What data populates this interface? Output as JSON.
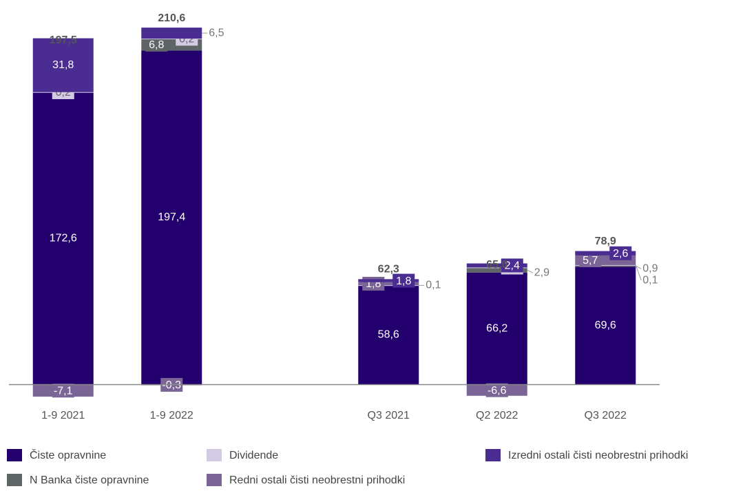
{
  "chart_data": {
    "type": "stacked_bar",
    "categories": [
      "1-9 2021",
      "1-9 2022",
      null,
      "Q3 2021",
      "Q2 2022",
      "Q3 2022"
    ],
    "series": [
      {
        "name": "Čiste opravnine",
        "color": "#24006e",
        "values": [
          172.6,
          197.4,
          null,
          58.6,
          66.2,
          69.6
        ],
        "value_labels": [
          "172,6",
          "197,4",
          null,
          "58,6",
          "66,2",
          "69,6"
        ]
      },
      {
        "name": "N Banka čiste opravnine",
        "color": "#5f6566",
        "values": [
          null,
          6.8,
          null,
          null,
          2.9,
          0.9
        ],
        "value_labels": [
          null,
          "6,8",
          null,
          null,
          "2,9",
          "0,9"
        ]
      },
      {
        "name": "Dividende",
        "color": "#d3cbe3",
        "values": [
          0.2,
          0.2,
          null,
          0.1,
          0.1,
          0.1
        ],
        "value_labels": [
          "0,2",
          "0,2",
          null,
          "0,1",
          "0,1",
          "0,1"
        ]
      },
      {
        "name": "Redni ostali čisti neobrestni prihodki",
        "color": "#7b6596",
        "values": [
          -7.1,
          -0.3,
          null,
          1.8,
          -6.6,
          5.7
        ],
        "value_labels": [
          "-7,1",
          "-0,3",
          null,
          "1,8",
          "-6,6",
          "5,7"
        ]
      },
      {
        "name": "Izredni ostali čisti neobrestni prihodki",
        "color": "#4b2d91",
        "values": [
          31.8,
          6.5,
          null,
          1.8,
          2.4,
          2.6
        ],
        "value_labels": [
          "31,8",
          "6,5",
          null,
          "1,8",
          "2,4",
          "2,6"
        ]
      }
    ],
    "totals": {
      "values": [
        197.5,
        210.6,
        null,
        62.3,
        65.0,
        78.9
      ],
      "value_labels": [
        "197,5",
        "210,6",
        null,
        "62,3",
        "65,0",
        "78,9"
      ]
    },
    "ylim": [
      -12,
      215
    ]
  }
}
